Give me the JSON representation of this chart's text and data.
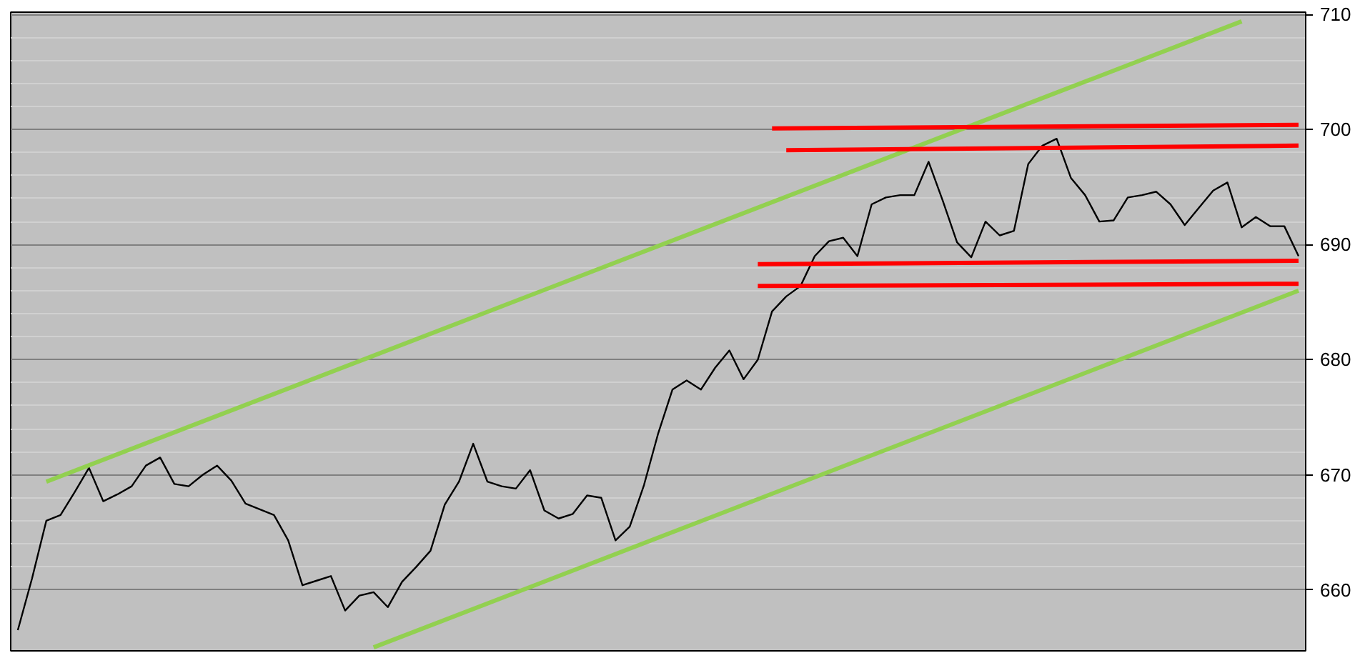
{
  "chart_data": {
    "type": "line",
    "categories": [
      null,
      null,
      null,
      null,
      null,
      null,
      null,
      null,
      null,
      null,
      null,
      null,
      null,
      null,
      null,
      null,
      null,
      null,
      null,
      null,
      null,
      null,
      null,
      null,
      null,
      null,
      null,
      null,
      null,
      null,
      null,
      null,
      null,
      null,
      null,
      null,
      null,
      null,
      null,
      null,
      null,
      null,
      null,
      null,
      null,
      null,
      null,
      null,
      null,
      null,
      null,
      null,
      null,
      null,
      null,
      null,
      null,
      null,
      null,
      null,
      null,
      null,
      null,
      null,
      null,
      null,
      null,
      null,
      null,
      null,
      null,
      null,
      null,
      null,
      null,
      null,
      null,
      null,
      null,
      null,
      null,
      null,
      null,
      null,
      null,
      null,
      null,
      null,
      null,
      null,
      null
    ],
    "ylim": [
      654.7,
      710.2
    ],
    "yticks": [
      660,
      670,
      680,
      690,
      700,
      710
    ],
    "grid": "y",
    "tick_labels": "y",
    "series": [
      {
        "color": "#000000",
        "values": [
          656.5,
          661.0,
          666.0,
          666.5,
          668.5,
          670.6,
          667.7,
          668.3,
          669.0,
          670.8,
          671.5,
          669.2,
          669.0,
          670.0,
          670.8,
          669.5,
          667.5,
          667.0,
          666.5,
          664.3,
          660.4,
          660.8,
          661.2,
          658.2,
          659.5,
          659.8,
          658.5,
          660.7,
          662.0,
          663.4,
          667.4,
          669.4,
          672.7,
          669.4,
          669.0,
          668.8,
          670.4,
          666.9,
          666.2,
          666.6,
          668.2,
          668.0,
          664.3,
          665.5,
          669.1,
          673.6,
          677.4,
          678.2,
          677.4,
          679.3,
          680.8,
          678.3,
          680.0,
          684.2,
          685.5,
          686.4,
          689.0,
          690.3,
          690.6,
          689.0,
          693.5,
          694.1,
          694.3,
          694.3,
          697.2,
          693.8,
          690.2,
          688.9,
          692.0,
          690.8,
          691.2,
          697.0,
          698.6,
          699.2,
          695.8,
          694.3,
          692.0,
          692.1,
          694.1,
          694.3,
          694.6,
          693.5,
          691.7,
          693.2,
          694.7,
          695.4,
          691.5,
          692.4,
          691.6,
          691.6,
          689.0
        ]
      },
      {
        "color": "#92d050",
        "values": [
          null,
          null,
          669.4,
          null,
          null,
          null,
          null,
          null,
          null,
          null,
          null,
          null,
          null,
          null,
          null,
          null,
          null,
          null,
          null,
          null,
          null,
          null,
          null,
          null,
          null,
          null,
          null,
          null,
          null,
          null,
          null,
          null,
          null,
          null,
          null,
          null,
          null,
          null,
          null,
          null,
          null,
          null,
          null,
          null,
          null,
          null,
          null,
          null,
          null,
          null,
          null,
          null,
          null,
          null,
          null,
          null,
          null,
          null,
          null,
          null,
          null,
          null,
          null,
          null,
          null,
          null,
          null,
          null,
          null,
          null,
          null,
          null,
          null,
          null,
          null,
          null,
          null,
          null,
          null,
          null,
          null,
          null,
          null,
          null,
          null,
          null,
          709.4,
          null,
          null,
          null,
          null
        ]
      },
      {
        "color": "#92d050",
        "values": [
          null,
          null,
          null,
          null,
          null,
          null,
          null,
          null,
          null,
          null,
          null,
          null,
          null,
          null,
          null,
          null,
          null,
          null,
          null,
          null,
          null,
          null,
          null,
          null,
          null,
          655.0,
          null,
          null,
          null,
          null,
          null,
          null,
          null,
          null,
          null,
          null,
          null,
          null,
          null,
          null,
          null,
          null,
          null,
          null,
          null,
          null,
          null,
          null,
          null,
          null,
          null,
          null,
          null,
          null,
          null,
          null,
          null,
          null,
          null,
          null,
          null,
          null,
          null,
          null,
          null,
          null,
          null,
          null,
          null,
          null,
          null,
          null,
          null,
          null,
          null,
          null,
          null,
          null,
          null,
          null,
          null,
          null,
          null,
          null,
          null,
          null,
          null,
          null,
          null,
          null,
          686.0
        ]
      },
      {
        "color": "#ff0000",
        "values": [
          null,
          null,
          null,
          null,
          null,
          null,
          null,
          null,
          null,
          null,
          null,
          null,
          null,
          null,
          null,
          null,
          null,
          null,
          null,
          null,
          null,
          null,
          null,
          null,
          null,
          null,
          null,
          null,
          null,
          null,
          null,
          null,
          null,
          null,
          null,
          null,
          null,
          null,
          null,
          null,
          null,
          null,
          null,
          null,
          null,
          null,
          null,
          null,
          null,
          null,
          null,
          null,
          null,
          700.1,
          null,
          null,
          null,
          null,
          null,
          null,
          null,
          null,
          null,
          null,
          null,
          null,
          null,
          null,
          null,
          null,
          null,
          null,
          null,
          null,
          null,
          null,
          null,
          null,
          null,
          null,
          null,
          null,
          null,
          null,
          null,
          null,
          null,
          null,
          null,
          null,
          700.4
        ]
      },
      {
        "color": "#ff0000",
        "values": [
          null,
          null,
          null,
          null,
          null,
          null,
          null,
          null,
          null,
          null,
          null,
          null,
          null,
          null,
          null,
          null,
          null,
          null,
          null,
          null,
          null,
          null,
          null,
          null,
          null,
          null,
          null,
          null,
          null,
          null,
          null,
          null,
          null,
          null,
          null,
          null,
          null,
          null,
          null,
          null,
          null,
          null,
          null,
          null,
          null,
          null,
          null,
          null,
          null,
          null,
          null,
          null,
          null,
          null,
          698.2,
          null,
          null,
          null,
          null,
          null,
          null,
          null,
          null,
          null,
          null,
          null,
          null,
          null,
          null,
          null,
          null,
          null,
          null,
          null,
          null,
          null,
          null,
          null,
          null,
          null,
          null,
          null,
          null,
          null,
          null,
          null,
          null,
          null,
          null,
          null,
          698.6
        ]
      },
      {
        "color": "#ff0000",
        "values": [
          null,
          null,
          null,
          null,
          null,
          null,
          null,
          null,
          null,
          null,
          null,
          null,
          null,
          null,
          null,
          null,
          null,
          null,
          null,
          null,
          null,
          null,
          null,
          null,
          null,
          null,
          null,
          null,
          null,
          null,
          null,
          null,
          null,
          null,
          null,
          null,
          null,
          null,
          null,
          null,
          null,
          null,
          null,
          null,
          null,
          null,
          null,
          null,
          null,
          null,
          null,
          null,
          688.3,
          null,
          null,
          null,
          null,
          null,
          null,
          null,
          null,
          null,
          null,
          null,
          null,
          null,
          null,
          null,
          null,
          null,
          null,
          null,
          null,
          null,
          null,
          null,
          null,
          null,
          null,
          null,
          null,
          null,
          null,
          null,
          null,
          null,
          null,
          null,
          null,
          null,
          688.6
        ]
      },
      {
        "color": "#ff0000",
        "values": [
          null,
          null,
          null,
          null,
          null,
          null,
          null,
          null,
          null,
          null,
          null,
          null,
          null,
          null,
          null,
          null,
          null,
          null,
          null,
          null,
          null,
          null,
          null,
          null,
          null,
          null,
          null,
          null,
          null,
          null,
          null,
          null,
          null,
          null,
          null,
          null,
          null,
          null,
          null,
          null,
          null,
          null,
          null,
          null,
          null,
          null,
          null,
          null,
          null,
          null,
          null,
          null,
          686.4,
          null,
          null,
          null,
          null,
          null,
          null,
          null,
          null,
          null,
          null,
          null,
          null,
          null,
          null,
          null,
          null,
          null,
          null,
          null,
          null,
          null,
          null,
          null,
          null,
          null,
          null,
          null,
          null,
          null,
          null,
          null,
          null,
          null,
          null,
          null,
          null,
          null,
          686.6
        ]
      }
    ]
  }
}
